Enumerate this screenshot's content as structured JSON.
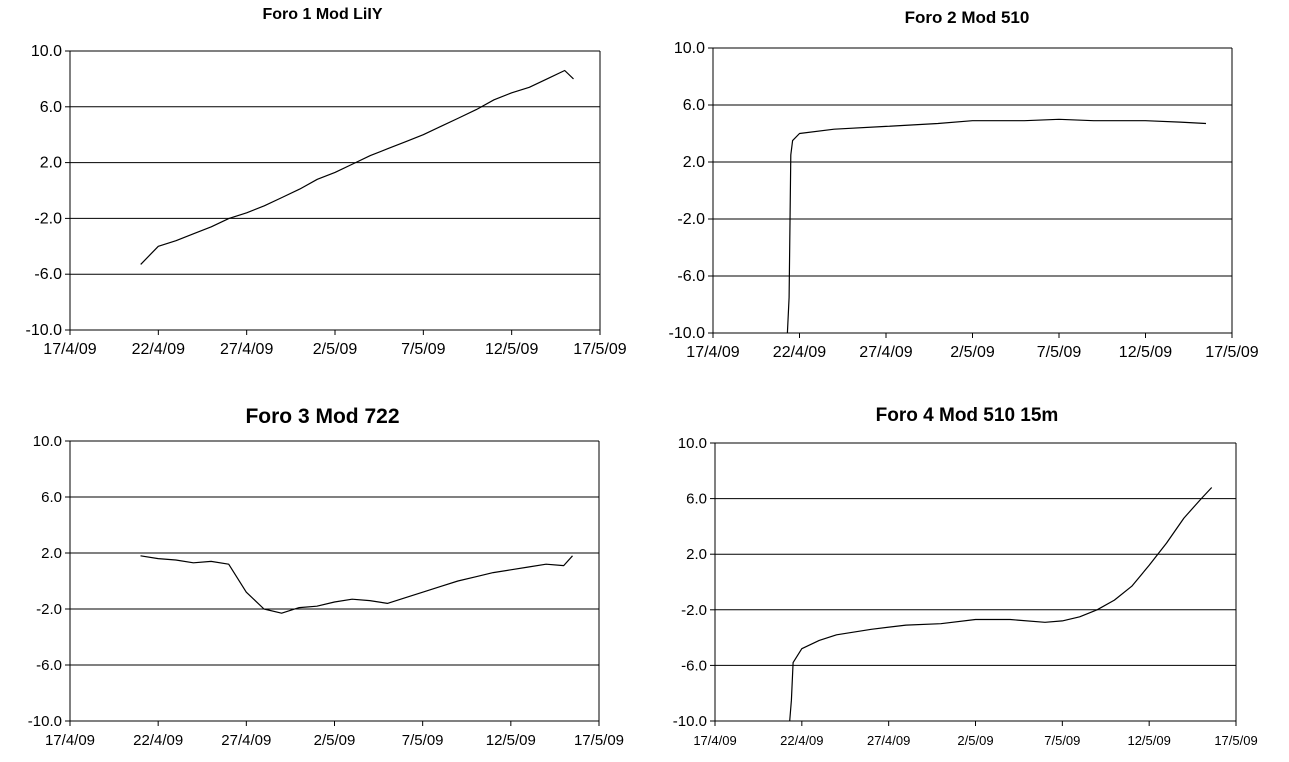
{
  "chart_data": [
    {
      "type": "line",
      "title": "Foro 1 Mod LiIY",
      "xlabel": "",
      "ylabel": "",
      "x_ticks": [
        "17/4/09",
        "22/4/09",
        "27/4/09",
        "2/5/09",
        "7/5/09",
        "12/5/09",
        "17/5/09"
      ],
      "xlim": [
        "17/4/09",
        "17/5/09"
      ],
      "y_ticks": [
        "10.0",
        "6.0",
        "2.0",
        "-2.0",
        "-6.0",
        "-10.0"
      ],
      "ylim": [
        -10,
        10
      ],
      "grid": "horizontal",
      "series": [
        {
          "values": [
            [
              "21/4/09",
              -5.3
            ],
            [
              "22/4/09",
              -4.0
            ],
            [
              "23/4/09",
              -3.6
            ],
            [
              "24/4/09",
              -3.1
            ],
            [
              "25/4/09",
              -2.6
            ],
            [
              "26/4/09",
              -2.0
            ],
            [
              "27/4/09",
              -1.6
            ],
            [
              "28/4/09",
              -1.1
            ],
            [
              "29/4/09",
              -0.5
            ],
            [
              "30/4/09",
              0.1
            ],
            [
              "1/5/09",
              0.8
            ],
            [
              "2/5/09",
              1.3
            ],
            [
              "3/5/09",
              1.9
            ],
            [
              "4/5/09",
              2.5
            ],
            [
              "5/5/09",
              3.0
            ],
            [
              "6/5/09",
              3.5
            ],
            [
              "7/5/09",
              4.0
            ],
            [
              "8/5/09",
              4.6
            ],
            [
              "9/5/09",
              5.2
            ],
            [
              "10/5/09",
              5.8
            ],
            [
              "11/5/09",
              6.5
            ],
            [
              "12/5/09",
              7.0
            ],
            [
              "13/5/09",
              7.4
            ],
            [
              "14/5/09",
              8.0
            ],
            [
              "15/5/09",
              8.6
            ],
            [
              "15.5/5/09",
              8.0
            ]
          ]
        }
      ]
    },
    {
      "type": "line",
      "title": "Foro 2 Mod 510",
      "xlabel": "",
      "ylabel": "",
      "x_ticks": [
        "17/4/09",
        "22/4/09",
        "27/4/09",
        "2/5/09",
        "7/5/09",
        "12/5/09",
        "17/5/09"
      ],
      "xlim": [
        "17/4/09",
        "17/5/09"
      ],
      "y_ticks": [
        "10.0",
        "6.0",
        "2.0",
        "-2.0",
        "-6.0",
        "-10.0"
      ],
      "ylim": [
        -10,
        10
      ],
      "grid": "horizontal",
      "series": [
        {
          "values": [
            [
              "21.3/4/09",
              -10.0
            ],
            [
              "21.4/4/09",
              -7.5
            ],
            [
              "21.5/4/09",
              2.5
            ],
            [
              "21.6/4/09",
              3.5
            ],
            [
              "22/4/09",
              4.0
            ],
            [
              "24/4/09",
              4.3
            ],
            [
              "27/4/09",
              4.5
            ],
            [
              "30/4/09",
              4.7
            ],
            [
              "2/5/09",
              4.9
            ],
            [
              "5/5/09",
              4.9
            ],
            [
              "7/5/09",
              5.0
            ],
            [
              "9/5/09",
              4.9
            ],
            [
              "12/5/09",
              4.9
            ],
            [
              "14/5/09",
              4.8
            ],
            [
              "15.5/5/09",
              4.7
            ]
          ]
        }
      ]
    },
    {
      "type": "line",
      "title": "Foro 3 Mod 722",
      "xlabel": "",
      "ylabel": "",
      "x_ticks": [
        "17/4/09",
        "22/4/09",
        "27/4/09",
        "2/5/09",
        "7/5/09",
        "12/5/09",
        "17/5/09"
      ],
      "xlim": [
        "17/4/09",
        "17/5/09"
      ],
      "y_ticks": [
        "10.0",
        "6.0",
        "2.0",
        "-2.0",
        "-6.0",
        "-10.0"
      ],
      "ylim": [
        -10,
        10
      ],
      "grid": "horizontal",
      "series": [
        {
          "values": [
            [
              "21/4/09",
              1.8
            ],
            [
              "22/4/09",
              1.6
            ],
            [
              "23/4/09",
              1.5
            ],
            [
              "24/4/09",
              1.3
            ],
            [
              "25/4/09",
              1.4
            ],
            [
              "26/4/09",
              1.2
            ],
            [
              "27/4/09",
              -0.8
            ],
            [
              "28/4/09",
              -2.0
            ],
            [
              "29/4/09",
              -2.3
            ],
            [
              "30/4/09",
              -1.9
            ],
            [
              "1/5/09",
              -1.8
            ],
            [
              "2/5/09",
              -1.5
            ],
            [
              "3/5/09",
              -1.3
            ],
            [
              "4/5/09",
              -1.4
            ],
            [
              "5/5/09",
              -1.6
            ],
            [
              "6/5/09",
              -1.2
            ],
            [
              "7/5/09",
              -0.8
            ],
            [
              "8/5/09",
              -0.4
            ],
            [
              "9/5/09",
              0.0
            ],
            [
              "10/5/09",
              0.3
            ],
            [
              "11/5/09",
              0.6
            ],
            [
              "12/5/09",
              0.8
            ],
            [
              "13/5/09",
              1.0
            ],
            [
              "14/5/09",
              1.2
            ],
            [
              "15/5/09",
              1.1
            ],
            [
              "15.5/5/09",
              1.8
            ]
          ]
        }
      ]
    },
    {
      "type": "line",
      "title": "Foro 4 Mod 510 15m",
      "xlabel": "",
      "ylabel": "",
      "x_ticks": [
        "17/4/09",
        "22/4/09",
        "27/4/09",
        "2/5/09",
        "7/5/09",
        "12/5/09",
        "17/5/09"
      ],
      "xlim": [
        "17/4/09",
        "17/5/09"
      ],
      "y_ticks": [
        "10.0",
        "6.0",
        "2.0",
        "-2.0",
        "-6.0",
        "-10.0"
      ],
      "ylim": [
        -10,
        10
      ],
      "grid": "horizontal",
      "series": [
        {
          "values": [
            [
              "21.3/4/09",
              -10.0
            ],
            [
              "21.4/4/09",
              -8.5
            ],
            [
              "21.5/4/09",
              -5.8
            ],
            [
              "22/4/09",
              -4.8
            ],
            [
              "23/4/09",
              -4.2
            ],
            [
              "24/4/09",
              -3.8
            ],
            [
              "26/4/09",
              -3.4
            ],
            [
              "28/4/09",
              -3.1
            ],
            [
              "30/4/09",
              -3.0
            ],
            [
              "2/5/09",
              -2.7
            ],
            [
              "4/5/09",
              -2.7
            ],
            [
              "6/5/09",
              -2.9
            ],
            [
              "7/5/09",
              -2.8
            ],
            [
              "8/5/09",
              -2.5
            ],
            [
              "9/5/09",
              -2.0
            ],
            [
              "10/5/09",
              -1.3
            ],
            [
              "11/5/09",
              -0.3
            ],
            [
              "12/5/09",
              1.2
            ],
            [
              "13/5/09",
              2.8
            ],
            [
              "14/5/09",
              4.6
            ],
            [
              "15/5/09",
              6.0
            ],
            [
              "15.6/5/09",
              6.8
            ]
          ]
        }
      ]
    }
  ]
}
